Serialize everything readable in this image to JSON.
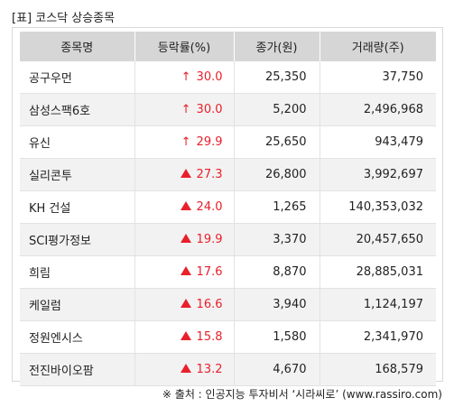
{
  "title": "[표] 코스닥 상승종목",
  "headers": [
    "종목명",
    "등락률(%)",
    "종가(원)",
    "거래량(주)"
  ],
  "rows": [
    {
      "name": "공구우먼",
      "indicator": "up-arrow",
      "change": "30.0",
      "close": "25,350",
      "volume": "37,750"
    },
    {
      "name": "삼성스팩6호",
      "indicator": "up-arrow",
      "change": "30.0",
      "close": "5,200",
      "volume": "2,496,968"
    },
    {
      "name": "유신",
      "indicator": "up-arrow",
      "change": "29.9",
      "close": "25,650",
      "volume": "943,479"
    },
    {
      "name": "실리콘투",
      "indicator": "up-triangle",
      "change": "27.3",
      "close": "26,800",
      "volume": "3,992,697"
    },
    {
      "name": "KH 건설",
      "indicator": "up-triangle",
      "change": "24.0",
      "close": "1,265",
      "volume": "140,353,032"
    },
    {
      "name": "SCI평가정보",
      "indicator": "up-triangle",
      "change": "19.9",
      "close": "3,370",
      "volume": "20,457,650"
    },
    {
      "name": "희림",
      "indicator": "up-triangle",
      "change": "17.6",
      "close": "8,870",
      "volume": "28,885,031"
    },
    {
      "name": "케일럼",
      "indicator": "up-triangle",
      "change": "16.6",
      "close": "3,940",
      "volume": "1,124,197"
    },
    {
      "name": "정원엔시스",
      "indicator": "up-triangle",
      "change": "15.8",
      "close": "1,580",
      "volume": "2,341,970"
    },
    {
      "name": "전진바이오팜",
      "indicator": "up-triangle",
      "change": "13.2",
      "close": "4,670",
      "volume": "168,579"
    }
  ],
  "colors": {
    "up": "#e8202b",
    "header_bg": "#d6d6d6",
    "stripe_bg": "#f2f2f2"
  },
  "source": "※ 출처 : 인공지능 투자비서 ‘시라씨로’ (www.rassiro.com)"
}
